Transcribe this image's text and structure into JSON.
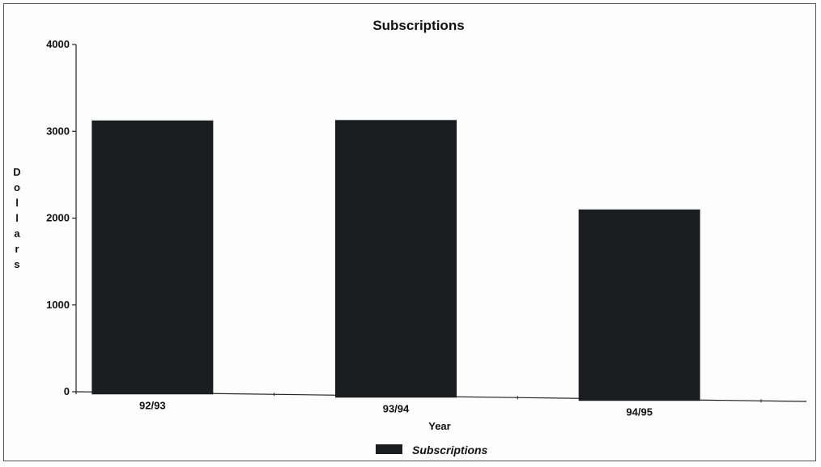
{
  "chart_data": {
    "type": "bar",
    "title": "Subscriptions",
    "xlabel": "Year",
    "ylabel": "Dollars",
    "categories": [
      "92/93",
      "93/94",
      "94/95"
    ],
    "series": [
      {
        "name": "Subscriptions",
        "values": [
          3125,
          3130,
          2100
        ],
        "color": "#1c1d21"
      }
    ],
    "ylim": [
      0,
      4000
    ],
    "yticks": [
      "0",
      "1000",
      "2000",
      "3000",
      "4000"
    ],
    "grid": false,
    "legend_position": "bottom-center"
  }
}
